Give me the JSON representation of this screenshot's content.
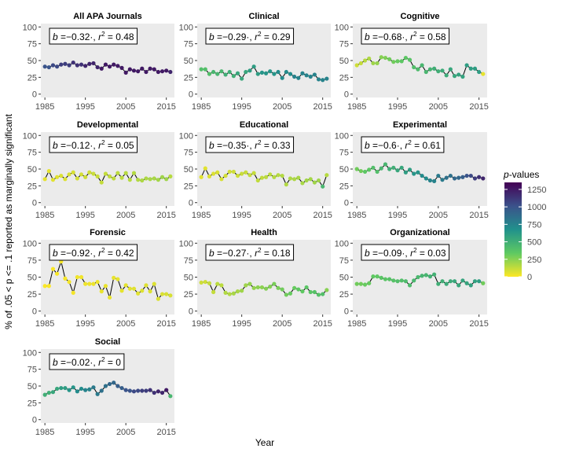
{
  "figure": {
    "xlabel": "Year",
    "ylabel": "% of .05 < p <= .1 reported as marginally significant",
    "legend": {
      "title_italic": "p",
      "title_rest": "-values",
      "ticks": [
        "1250",
        "1000",
        "750",
        "500",
        "250",
        "0"
      ],
      "tick_values": [
        1250,
        1000,
        750,
        500,
        250,
        0
      ],
      "range": [
        0,
        1350
      ],
      "colors": [
        "#440154",
        "#3b528b",
        "#21918c",
        "#5ec962",
        "#fde725"
      ]
    },
    "panel_bg": "#ebebeb",
    "line_color": "#000000"
  },
  "chart_data": [
    {
      "type": "line",
      "title": "All APA Journals",
      "annotation": {
        "b": "−0.32·,",
        "r2": "0.48"
      },
      "xlim": [
        1984,
        2017
      ],
      "ylim": [
        -5,
        105
      ],
      "x_ticks": [
        "1985",
        "1995",
        "2005",
        "2015"
      ],
      "y_ticks": [
        "0",
        "25",
        "50",
        "75",
        "100"
      ],
      "x": [
        1985,
        1986,
        1987,
        1988,
        1989,
        1990,
        1991,
        1992,
        1993,
        1994,
        1995,
        1996,
        1997,
        1998,
        1999,
        2000,
        2001,
        2002,
        2003,
        2004,
        2005,
        2006,
        2007,
        2008,
        2009,
        2010,
        2011,
        2012,
        2013,
        2014,
        2015,
        2016
      ],
      "y": [
        41,
        40,
        43,
        41,
        44,
        45,
        43,
        47,
        43,
        44,
        42,
        45,
        46,
        40,
        38,
        44,
        41,
        44,
        42,
        39,
        32,
        37,
        35,
        34,
        38,
        33,
        38,
        37,
        33,
        34,
        35,
        33
      ],
      "pvalues": [
        1000,
        1000,
        1050,
        1050,
        1100,
        1100,
        1100,
        1150,
        1150,
        1150,
        1200,
        1200,
        1200,
        1200,
        1250,
        1250,
        1250,
        1250,
        1250,
        1250,
        1250,
        1250,
        1250,
        1250,
        1250,
        1250,
        1250,
        1250,
        1250,
        1250,
        1250,
        1200
      ]
    },
    {
      "type": "line",
      "title": "Clinical",
      "annotation": {
        "b": "−0.29·,",
        "r2": "0.29"
      },
      "xlim": [
        1984,
        2017
      ],
      "ylim": [
        -5,
        105
      ],
      "x_ticks": [
        "1985",
        "1995",
        "2005",
        "2015"
      ],
      "y_ticks": [
        "0",
        "25",
        "50",
        "75",
        "100"
      ],
      "x": [
        1985,
        1986,
        1987,
        1988,
        1989,
        1990,
        1991,
        1992,
        1993,
        1994,
        1995,
        1996,
        1997,
        1998,
        1999,
        2000,
        2001,
        2002,
        2003,
        2004,
        2005,
        2006,
        2007,
        2008,
        2009,
        2010,
        2011,
        2012,
        2013,
        2014,
        2015,
        2016
      ],
      "y": [
        37,
        37,
        30,
        33,
        30,
        34,
        29,
        33,
        27,
        31,
        23,
        33,
        35,
        41,
        30,
        32,
        31,
        34,
        30,
        33,
        24,
        33,
        30,
        26,
        24,
        31,
        28,
        26,
        29,
        22,
        21,
        23
      ],
      "pvalues": [
        400,
        400,
        400,
        450,
        450,
        450,
        500,
        500,
        500,
        550,
        550,
        550,
        600,
        600,
        600,
        650,
        650,
        650,
        650,
        700,
        700,
        700,
        700,
        750,
        750,
        750,
        750,
        750,
        750,
        750,
        750,
        750
      ]
    },
    {
      "type": "line",
      "title": "Cognitive",
      "annotation": {
        "b": "−0.68·,",
        "r2": "0.58"
      },
      "xlim": [
        1984,
        2017
      ],
      "ylim": [
        -5,
        105
      ],
      "x_ticks": [
        "1985",
        "1995",
        "2005",
        "2015"
      ],
      "y_ticks": [
        "0",
        "25",
        "50",
        "75",
        "100"
      ],
      "x": [
        1985,
        1986,
        1987,
        1988,
        1989,
        1990,
        1991,
        1992,
        1993,
        1994,
        1995,
        1996,
        1997,
        1998,
        1999,
        2000,
        2001,
        2002,
        2003,
        2004,
        2005,
        2006,
        2007,
        2008,
        2009,
        2010,
        2011,
        2012,
        2013,
        2014,
        2015,
        2016
      ],
      "y": [
        43,
        46,
        50,
        53,
        46,
        46,
        55,
        54,
        52,
        48,
        49,
        49,
        54,
        51,
        40,
        37,
        43,
        33,
        37,
        38,
        34,
        35,
        28,
        37,
        27,
        29,
        26,
        43,
        38,
        38,
        33,
        30
      ],
      "pvalues": [
        100,
        120,
        150,
        170,
        200,
        220,
        250,
        270,
        300,
        300,
        320,
        350,
        350,
        370,
        400,
        420,
        450,
        450,
        470,
        500,
        500,
        520,
        520,
        550,
        550,
        570,
        570,
        600,
        600,
        600,
        600,
        50
      ]
    },
    {
      "type": "line",
      "title": "Developmental",
      "annotation": {
        "b": "−0.12·,",
        "r2": "0.05"
      },
      "xlim": [
        1984,
        2017
      ],
      "ylim": [
        -5,
        105
      ],
      "x_ticks": [
        "1985",
        "1995",
        "2005",
        "2015"
      ],
      "y_ticks": [
        "0",
        "25",
        "50",
        "75",
        "100"
      ],
      "x": [
        1985,
        1986,
        1987,
        1988,
        1989,
        1990,
        1991,
        1992,
        1993,
        1994,
        1995,
        1996,
        1997,
        1998,
        1999,
        2000,
        2001,
        2002,
        2003,
        2004,
        2005,
        2006,
        2007,
        2008,
        2009,
        2010,
        2011,
        2012,
        2013,
        2014,
        2015,
        2016
      ],
      "y": [
        35,
        47,
        34,
        38,
        40,
        35,
        42,
        45,
        36,
        42,
        38,
        45,
        43,
        39,
        30,
        43,
        39,
        36,
        44,
        37,
        44,
        34,
        44,
        34,
        33,
        36,
        35,
        36,
        34,
        38,
        35,
        39
      ],
      "pvalues": [
        50,
        50,
        60,
        60,
        70,
        70,
        80,
        80,
        90,
        90,
        100,
        100,
        110,
        110,
        120,
        120,
        130,
        130,
        140,
        140,
        150,
        150,
        160,
        160,
        170,
        170,
        180,
        180,
        190,
        200,
        200,
        150
      ]
    },
    {
      "type": "line",
      "title": "Educational",
      "annotation": {
        "b": "−0.35·,",
        "r2": "0.33"
      },
      "xlim": [
        1984,
        2017
      ],
      "ylim": [
        -5,
        105
      ],
      "x_ticks": [
        "1985",
        "1995",
        "2005",
        "2015"
      ],
      "y_ticks": [
        "0",
        "25",
        "50",
        "75",
        "100"
      ],
      "x": [
        1985,
        1986,
        1987,
        1988,
        1989,
        1990,
        1991,
        1992,
        1993,
        1994,
        1995,
        1996,
        1997,
        1998,
        1999,
        2000,
        2001,
        2002,
        2003,
        2004,
        2005,
        2006,
        2007,
        2008,
        2009,
        2010,
        2011,
        2012,
        2013,
        2014,
        2015,
        2016
      ],
      "y": [
        38,
        51,
        39,
        43,
        45,
        35,
        40,
        46,
        46,
        40,
        43,
        45,
        41,
        44,
        33,
        37,
        38,
        42,
        38,
        41,
        40,
        27,
        36,
        35,
        37,
        29,
        33,
        35,
        30,
        33,
        24,
        41
      ],
      "pvalues": [
        60,
        60,
        70,
        70,
        80,
        80,
        90,
        90,
        100,
        100,
        110,
        110,
        120,
        120,
        130,
        130,
        140,
        140,
        150,
        150,
        160,
        160,
        170,
        170,
        180,
        180,
        190,
        190,
        200,
        200,
        450,
        150
      ]
    },
    {
      "type": "line",
      "title": "Experimental",
      "annotation": {
        "b": "−0.6·,",
        "r2": "0.61"
      },
      "xlim": [
        1984,
        2017
      ],
      "ylim": [
        -5,
        105
      ],
      "x_ticks": [
        "1985",
        "1995",
        "2005",
        "2015"
      ],
      "y_ticks": [
        "0",
        "25",
        "50",
        "75",
        "100"
      ],
      "x": [
        1985,
        1986,
        1987,
        1988,
        1989,
        1990,
        1991,
        1992,
        1993,
        1994,
        1995,
        1996,
        1997,
        1998,
        1999,
        2000,
        2001,
        2002,
        2003,
        2004,
        2005,
        2006,
        2007,
        2008,
        2009,
        2010,
        2011,
        2012,
        2013,
        2014,
        2015,
        2016
      ],
      "y": [
        50,
        47,
        46,
        49,
        52,
        46,
        51,
        57,
        50,
        52,
        48,
        52,
        45,
        49,
        43,
        45,
        40,
        36,
        33,
        32,
        40,
        34,
        37,
        40,
        36,
        37,
        38,
        40,
        40,
        36,
        38,
        36
      ],
      "pvalues": [
        300,
        300,
        350,
        350,
        400,
        400,
        450,
        450,
        500,
        500,
        550,
        550,
        600,
        600,
        650,
        650,
        700,
        700,
        750,
        750,
        800,
        800,
        850,
        850,
        900,
        900,
        950,
        1000,
        1050,
        1100,
        1150,
        1200
      ]
    },
    {
      "type": "line",
      "title": "Forensic",
      "annotation": {
        "b": "−0.92·,",
        "r2": "0.42"
      },
      "xlim": [
        1984,
        2017
      ],
      "ylim": [
        -5,
        105
      ],
      "x_ticks": [
        "1985",
        "1995",
        "2005",
        "2015"
      ],
      "y_ticks": [
        "0",
        "25",
        "50",
        "75",
        "100"
      ],
      "x": [
        1985,
        1986,
        1987,
        1988,
        1989,
        1990,
        1991,
        1992,
        1993,
        1994,
        1995,
        1996,
        1997,
        1998,
        1999,
        2000,
        2001,
        2002,
        2003,
        2004,
        2005,
        2006,
        2007,
        2008,
        2009,
        2010,
        2011,
        2012,
        2013,
        2014,
        2015,
        2016
      ],
      "y": [
        37,
        37,
        62,
        55,
        73,
        48,
        43,
        27,
        50,
        50,
        40,
        40,
        40,
        43,
        29,
        37,
        20,
        49,
        47,
        30,
        38,
        33,
        33,
        26,
        30,
        38,
        29,
        40,
        18,
        25,
        25,
        23
      ],
      "pvalues": [
        5,
        5,
        10,
        10,
        15,
        15,
        20,
        20,
        25,
        25,
        30,
        30,
        35,
        35,
        40,
        40,
        45,
        45,
        50,
        50,
        55,
        55,
        60,
        60,
        65,
        65,
        70,
        70,
        75,
        75,
        80,
        80
      ]
    },
    {
      "type": "line",
      "title": "Health",
      "annotation": {
        "b": "−0.27·,",
        "r2": "0.18"
      },
      "xlim": [
        1984,
        2017
      ],
      "ylim": [
        -5,
        105
      ],
      "x_ticks": [
        "1985",
        "1995",
        "2005",
        "2015"
      ],
      "y_ticks": [
        "0",
        "25",
        "50",
        "75",
        "100"
      ],
      "x": [
        1985,
        1986,
        1987,
        1988,
        1989,
        1990,
        1991,
        1992,
        1993,
        1994,
        1995,
        1996,
        1997,
        1998,
        1999,
        2000,
        2001,
        2002,
        2003,
        2004,
        2005,
        2006,
        2007,
        2008,
        2009,
        2010,
        2011,
        2012,
        2013,
        2014,
        2015,
        2016
      ],
      "y": [
        42,
        43,
        41,
        28,
        40,
        38,
        27,
        25,
        26,
        29,
        30,
        38,
        40,
        34,
        35,
        35,
        33,
        36,
        40,
        34,
        32,
        24,
        26,
        34,
        32,
        29,
        35,
        28,
        28,
        24,
        25,
        31
      ],
      "pvalues": [
        100,
        100,
        120,
        120,
        140,
        140,
        160,
        160,
        180,
        180,
        200,
        200,
        220,
        220,
        240,
        240,
        260,
        260,
        280,
        280,
        300,
        300,
        320,
        320,
        340,
        340,
        360,
        360,
        380,
        380,
        400,
        250
      ]
    },
    {
      "type": "line",
      "title": "Organizational",
      "annotation": {
        "b": "−0.09·,",
        "r2": "0.03"
      },
      "xlim": [
        1984,
        2017
      ],
      "ylim": [
        -5,
        105
      ],
      "x_ticks": [
        "1985",
        "1995",
        "2005",
        "2015"
      ],
      "y_ticks": [
        "0",
        "25",
        "50",
        "75",
        "100"
      ],
      "x": [
        1985,
        1986,
        1987,
        1988,
        1989,
        1990,
        1991,
        1992,
        1993,
        1994,
        1995,
        1996,
        1997,
        1998,
        1999,
        2000,
        2001,
        2002,
        2003,
        2004,
        2005,
        2006,
        2007,
        2008,
        2009,
        2010,
        2011,
        2012,
        2013,
        2014,
        2015,
        2016
      ],
      "y": [
        40,
        40,
        39,
        41,
        51,
        51,
        49,
        47,
        47,
        45,
        44,
        45,
        44,
        38,
        45,
        50,
        52,
        53,
        51,
        54,
        40,
        44,
        40,
        44,
        44,
        38,
        45,
        41,
        38,
        44,
        44,
        41
      ],
      "pvalues": [
        300,
        300,
        320,
        320,
        340,
        340,
        360,
        360,
        380,
        380,
        400,
        400,
        420,
        420,
        440,
        440,
        460,
        460,
        480,
        480,
        500,
        500,
        520,
        520,
        540,
        540,
        560,
        560,
        580,
        580,
        600,
        300
      ]
    },
    {
      "type": "line",
      "title": "Social",
      "annotation": {
        "b": "−0.02·,",
        "r2": "0"
      },
      "xlim": [
        1984,
        2017
      ],
      "ylim": [
        -5,
        105
      ],
      "x_ticks": [
        "1985",
        "1995",
        "2005",
        "2015"
      ],
      "y_ticks": [
        "0",
        "25",
        "50",
        "75",
        "100"
      ],
      "x": [
        1985,
        1986,
        1987,
        1988,
        1989,
        1990,
        1991,
        1992,
        1993,
        1994,
        1995,
        1996,
        1997,
        1998,
        1999,
        2000,
        2001,
        2002,
        2003,
        2004,
        2005,
        2006,
        2007,
        2008,
        2009,
        2010,
        2011,
        2012,
        2013,
        2014,
        2015,
        2016
      ],
      "y": [
        37,
        40,
        41,
        46,
        47,
        47,
        44,
        48,
        42,
        46,
        44,
        45,
        48,
        38,
        43,
        50,
        53,
        55,
        50,
        47,
        44,
        43,
        42,
        43,
        43,
        43,
        44,
        40,
        42,
        40,
        44,
        35
      ],
      "pvalues": [
        500,
        500,
        550,
        550,
        600,
        600,
        650,
        650,
        700,
        700,
        750,
        750,
        800,
        800,
        850,
        850,
        900,
        900,
        950,
        950,
        1000,
        1000,
        1050,
        1050,
        1100,
        1100,
        1150,
        1150,
        1200,
        1200,
        1250,
        450
      ]
    }
  ]
}
